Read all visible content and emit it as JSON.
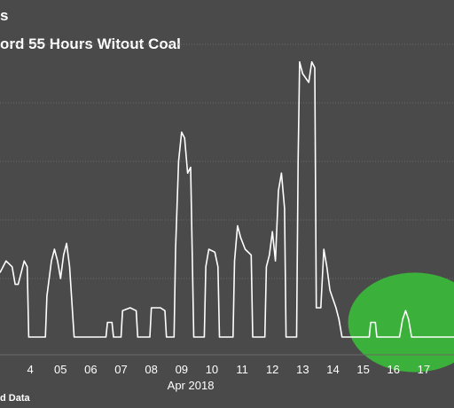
{
  "chart_data": {
    "type": "line",
    "title": "s",
    "subtitle": "ord 55 Hours Witout Coal",
    "source": "d Data",
    "x_tick_labels": [
      "4",
      "05",
      "06",
      "07",
      "08",
      "09",
      "10",
      "11",
      "12",
      "13",
      "14",
      "15",
      "16",
      "17"
    ],
    "month_label": "Apr 2018",
    "xlim": [
      3.0,
      18.0
    ],
    "ylim": [
      0,
      5
    ],
    "grid": true,
    "colors": {
      "background": "#4a4a4a",
      "line": "#ffffff",
      "grid": "#6a6a6a",
      "highlight": "#3ab53a"
    },
    "highlight": {
      "cx": 16.7,
      "cy": 0.25,
      "rx": 2.2,
      "ry": 0.85
    },
    "series": [
      {
        "values": [
          [
            3.0,
            1.1
          ],
          [
            3.2,
            1.3
          ],
          [
            3.4,
            1.2
          ],
          [
            3.5,
            0.9
          ],
          [
            3.6,
            0.9
          ],
          [
            3.8,
            1.3
          ],
          [
            3.9,
            1.2
          ],
          [
            3.95,
            0.0
          ],
          [
            4.5,
            0.0
          ],
          [
            4.55,
            0.7
          ],
          [
            4.7,
            1.3
          ],
          [
            4.8,
            1.5
          ],
          [
            4.9,
            1.3
          ],
          [
            5.0,
            1.0
          ],
          [
            5.1,
            1.4
          ],
          [
            5.2,
            1.6
          ],
          [
            5.3,
            1.2
          ],
          [
            5.35,
            0.8
          ],
          [
            5.45,
            0.0
          ],
          [
            6.5,
            0.0
          ],
          [
            6.55,
            0.25
          ],
          [
            6.7,
            0.25
          ],
          [
            6.75,
            0.0
          ],
          [
            7.0,
            0.0
          ],
          [
            7.05,
            0.45
          ],
          [
            7.3,
            0.5
          ],
          [
            7.5,
            0.45
          ],
          [
            7.55,
            0.0
          ],
          [
            7.95,
            0.0
          ],
          [
            8.0,
            0.5
          ],
          [
            8.3,
            0.5
          ],
          [
            8.45,
            0.45
          ],
          [
            8.5,
            0.0
          ],
          [
            8.75,
            0.0
          ],
          [
            8.8,
            1.5
          ],
          [
            8.9,
            3.0
          ],
          [
            9.0,
            3.5
          ],
          [
            9.1,
            3.4
          ],
          [
            9.2,
            2.8
          ],
          [
            9.3,
            2.9
          ],
          [
            9.35,
            1.5
          ],
          [
            9.4,
            0.0
          ],
          [
            9.75,
            0.0
          ],
          [
            9.8,
            1.2
          ],
          [
            9.9,
            1.5
          ],
          [
            10.1,
            1.45
          ],
          [
            10.2,
            1.2
          ],
          [
            10.25,
            0.0
          ],
          [
            10.7,
            0.0
          ],
          [
            10.75,
            1.3
          ],
          [
            10.85,
            1.9
          ],
          [
            10.95,
            1.7
          ],
          [
            11.1,
            1.5
          ],
          [
            11.3,
            1.4
          ],
          [
            11.35,
            0.0
          ],
          [
            11.75,
            0.0
          ],
          [
            11.8,
            1.2
          ],
          [
            11.9,
            1.4
          ],
          [
            12.0,
            1.8
          ],
          [
            12.1,
            1.3
          ],
          [
            12.2,
            2.5
          ],
          [
            12.3,
            2.8
          ],
          [
            12.4,
            2.2
          ],
          [
            12.45,
            0.0
          ],
          [
            12.8,
            0.0
          ],
          [
            12.85,
            3.0
          ],
          [
            12.9,
            4.7
          ],
          [
            13.0,
            4.5
          ],
          [
            13.2,
            4.35
          ],
          [
            13.3,
            4.7
          ],
          [
            13.4,
            4.6
          ],
          [
            13.45,
            0.5
          ],
          [
            13.6,
            0.5
          ],
          [
            13.7,
            1.5
          ],
          [
            13.8,
            1.2
          ],
          [
            13.9,
            0.8
          ],
          [
            14.1,
            0.5
          ],
          [
            14.2,
            0.3
          ],
          [
            14.3,
            0.0
          ],
          [
            15.2,
            0.0
          ],
          [
            15.25,
            0.25
          ],
          [
            15.4,
            0.25
          ],
          [
            15.45,
            0.0
          ],
          [
            16.2,
            0.0
          ],
          [
            16.3,
            0.3
          ],
          [
            16.4,
            0.45
          ],
          [
            16.5,
            0.3
          ],
          [
            16.6,
            0.0
          ],
          [
            18.0,
            0.0
          ]
        ]
      }
    ]
  }
}
